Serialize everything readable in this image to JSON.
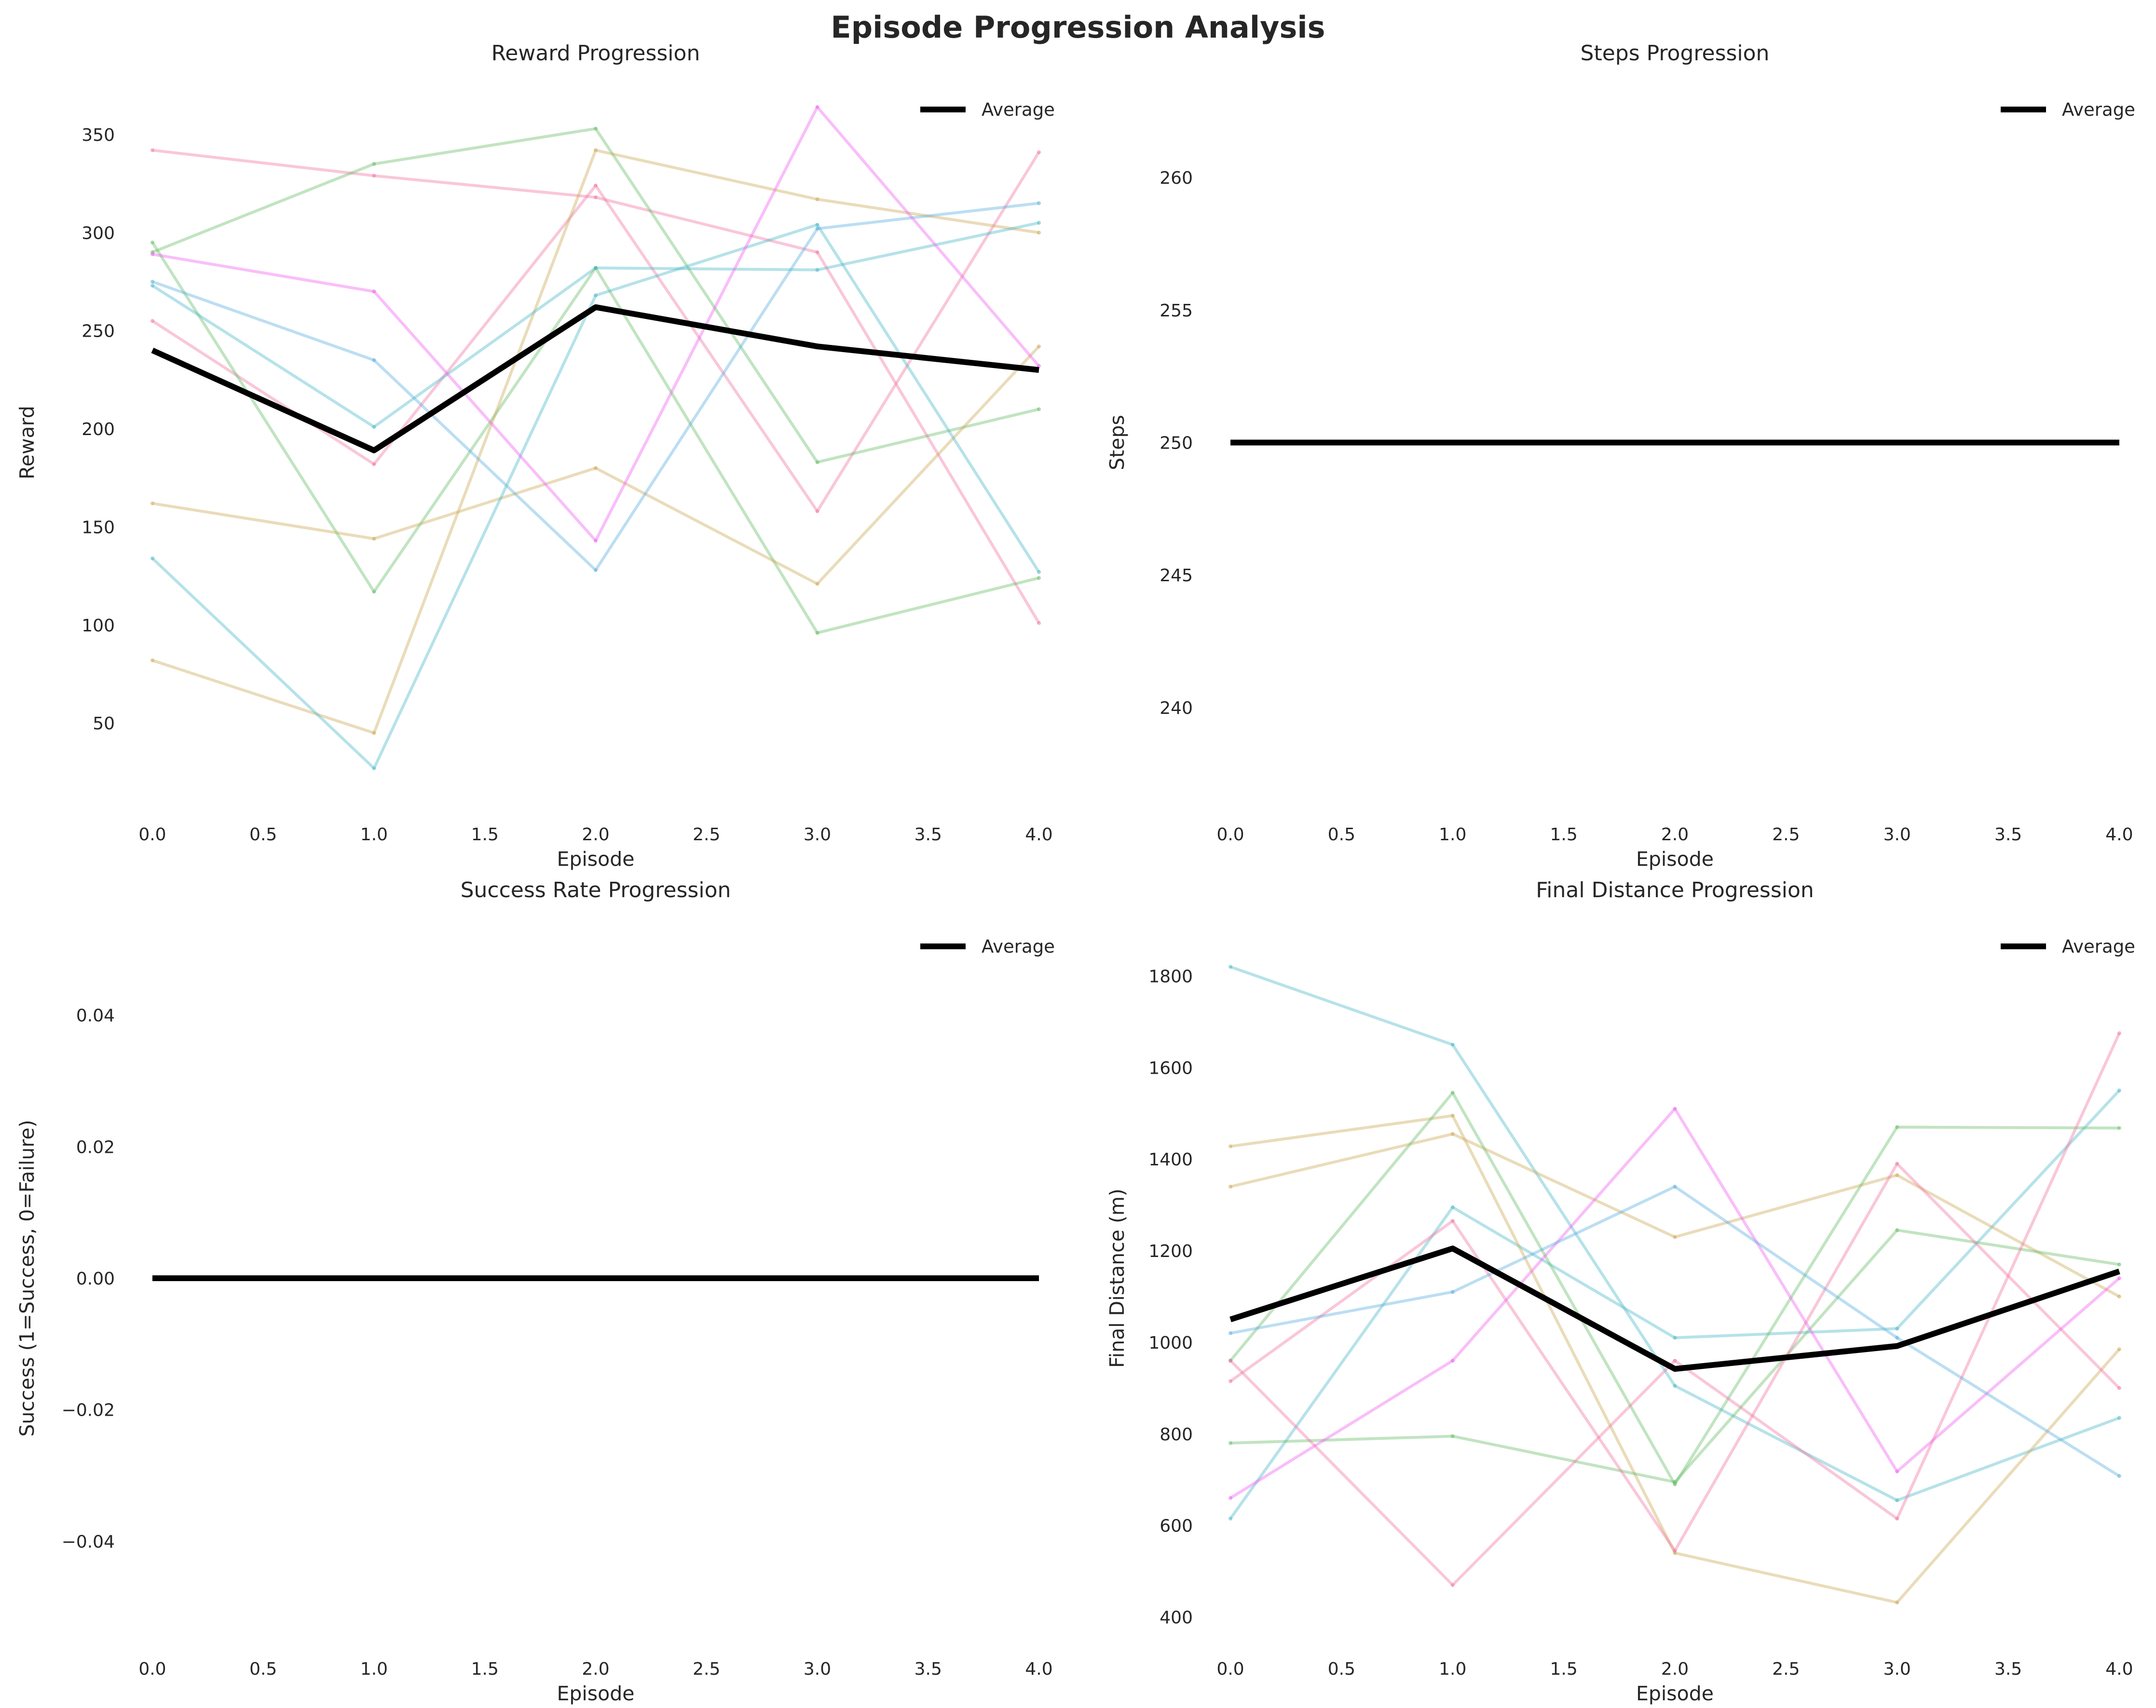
{
  "suptitle": "Episode Progression Analysis",
  "colors": {
    "average": "#000000",
    "pink": "#f06c9b",
    "green": "#5cb85c",
    "tan": "#c9a24a",
    "teal": "#3fb2c4",
    "blue": "#4fa8dc",
    "magenta": "#ee55ee"
  },
  "chart_data": [
    {
      "type": "line",
      "title": "Reward Progression",
      "xlabel": "Episode",
      "ylabel": "Reward",
      "x": [
        0,
        1,
        2,
        3,
        4
      ],
      "xticks": [
        "0.0",
        "0.5",
        "1.0",
        "1.5",
        "2.0",
        "2.5",
        "3.0",
        "3.5",
        "4.0"
      ],
      "yticks": [
        "50",
        "100",
        "150",
        "200",
        "250",
        "300",
        "350"
      ],
      "xlim": [
        -0.1,
        4.1
      ],
      "ylim": [
        8,
        378
      ],
      "grid": false,
      "legend": "top-right",
      "average": {
        "name": "Average",
        "values": [
          240,
          189,
          262,
          242,
          230
        ]
      },
      "runs": [
        {
          "color": "pink",
          "values": [
            342,
            329,
            318,
            290,
            101
          ]
        },
        {
          "color": "pink",
          "values": [
            255,
            182,
            324,
            158,
            341
          ]
        },
        {
          "color": "green",
          "values": [
            290,
            335,
            353,
            183,
            210
          ]
        },
        {
          "color": "green",
          "values": [
            295,
            117,
            282,
            96,
            124
          ]
        },
        {
          "color": "tan",
          "values": [
            162,
            144,
            180,
            121,
            242
          ]
        },
        {
          "color": "tan",
          "values": [
            82,
            45,
            342,
            317,
            300
          ]
        },
        {
          "color": "teal",
          "values": [
            134,
            27,
            268,
            304,
            127
          ]
        },
        {
          "color": "teal",
          "values": [
            273,
            201,
            282,
            281,
            305
          ]
        },
        {
          "color": "blue",
          "values": [
            275,
            235,
            128,
            302,
            315
          ]
        },
        {
          "color": "magenta",
          "values": [
            289,
            270,
            143,
            364,
            232
          ]
        }
      ]
    },
    {
      "type": "line",
      "title": "Steps Progression",
      "xlabel": "Episode",
      "ylabel": "Steps",
      "x": [
        0,
        1,
        2,
        3,
        4
      ],
      "xticks": [
        "0.0",
        "0.5",
        "1.0",
        "1.5",
        "2.0",
        "2.5",
        "3.0",
        "3.5",
        "4.0"
      ],
      "yticks": [
        "240",
        "245",
        "250",
        "255",
        "260"
      ],
      "xlim": [
        -0.1,
        4.1
      ],
      "ylim": [
        236.3,
        263.7
      ],
      "grid": false,
      "legend": "top-right",
      "average": {
        "name": "Average",
        "values": [
          250,
          250,
          250,
          250,
          250
        ]
      },
      "runs": []
    },
    {
      "type": "line",
      "title": "Success Rate Progression",
      "xlabel": "Episode",
      "ylabel": "Success (1=Success, 0=Failure)",
      "x": [
        0,
        1,
        2,
        3,
        4
      ],
      "xticks": [
        "0.0",
        "0.5",
        "1.0",
        "1.5",
        "2.0",
        "2.5",
        "3.0",
        "3.5",
        "4.0"
      ],
      "yticks": [
        "−0.04",
        "−0.02",
        "0.00",
        "0.02",
        "0.04"
      ],
      "xlim": [
        -0.1,
        4.1
      ],
      "ylim": [
        -0.055,
        0.055
      ],
      "grid": false,
      "legend": "top-right",
      "average": {
        "name": "Average",
        "values": [
          0,
          0,
          0,
          0,
          0
        ]
      },
      "runs": []
    },
    {
      "type": "line",
      "title": "Final Distance Progression",
      "xlabel": "Episode",
      "ylabel": "Final Distance (m)",
      "x": [
        0,
        1,
        2,
        3,
        4
      ],
      "xticks": [
        "0.0",
        "0.5",
        "1.0",
        "1.5",
        "2.0",
        "2.5",
        "3.0",
        "3.5",
        "4.0"
      ],
      "yticks": [
        "400",
        "600",
        "800",
        "1000",
        "1200",
        "1400",
        "1600",
        "1800"
      ],
      "xlim": [
        -0.1,
        4.1
      ],
      "ylim": [
        350,
        1930
      ],
      "grid": false,
      "legend": "top-right",
      "average": {
        "name": "Average",
        "values": [
          1050,
          1205,
          942,
          992,
          1155
        ]
      },
      "runs": [
        {
          "color": "teal",
          "values": [
            1820,
            1650,
            905,
            655,
            835
          ]
        },
        {
          "color": "teal",
          "values": [
            615,
            1295,
            1010,
            1030,
            1550
          ]
        },
        {
          "color": "tan",
          "values": [
            1428,
            1495,
            540,
            432,
            985
          ]
        },
        {
          "color": "tan",
          "values": [
            1340,
            1455,
            1230,
            1365,
            1100
          ]
        },
        {
          "color": "green",
          "values": [
            960,
            1545,
            690,
            1470,
            1468
          ]
        },
        {
          "color": "green",
          "values": [
            780,
            795,
            695,
            1245,
            1170
          ]
        },
        {
          "color": "pink",
          "values": [
            960,
            470,
            960,
            615,
            1675
          ]
        },
        {
          "color": "pink",
          "values": [
            915,
            1265,
            545,
            1390,
            900
          ]
        },
        {
          "color": "magenta",
          "values": [
            660,
            960,
            1510,
            718,
            1140
          ]
        },
        {
          "color": "blue",
          "values": [
            1020,
            1110,
            1340,
            1010,
            708
          ]
        }
      ]
    }
  ]
}
